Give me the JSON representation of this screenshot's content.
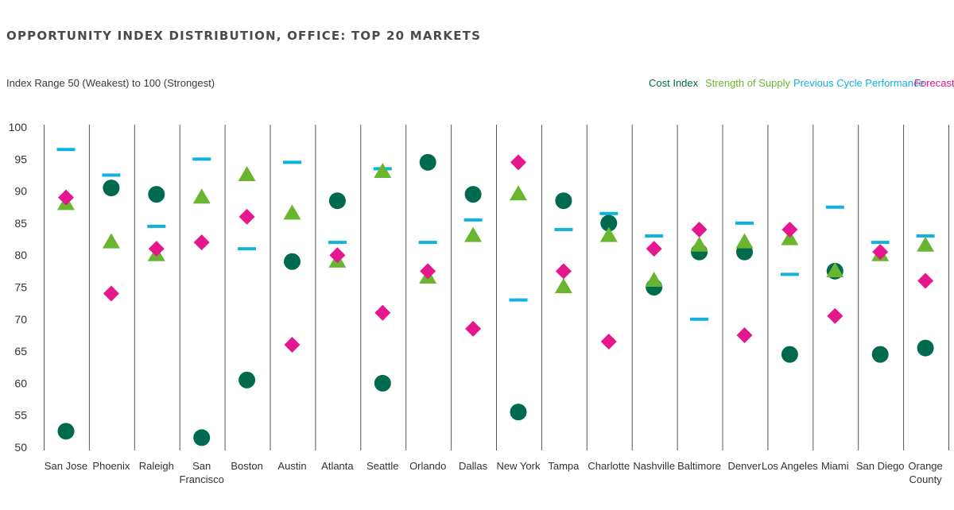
{
  "chart_data": {
    "type": "scatter",
    "title": "OPPORTUNITY INDEX DISTRIBUTION, OFFICE: TOP 20 MARKETS",
    "subtitle": "Index Range 50 (Weakest) to 100 (Strongest)",
    "ylim": [
      50,
      100
    ],
    "yticks": [
      50,
      55,
      60,
      65,
      70,
      75,
      80,
      85,
      90,
      95,
      100
    ],
    "grid": false,
    "legend_position": "top-right",
    "categories": [
      [
        "San Jose"
      ],
      [
        "Phoenix"
      ],
      [
        "Raleigh"
      ],
      [
        "San",
        "Francisco"
      ],
      [
        "Boston"
      ],
      [
        "Austin"
      ],
      [
        "Atlanta"
      ],
      [
        "Seattle"
      ],
      [
        "Orlando"
      ],
      [
        "Dallas"
      ],
      [
        "New York"
      ],
      [
        "Tampa"
      ],
      [
        "Charlotte"
      ],
      [
        "Nashville"
      ],
      [
        "Baltimore"
      ],
      [
        "Denver"
      ],
      [
        "Los Angeles"
      ],
      [
        "Miami"
      ],
      [
        "San Diego"
      ],
      [
        "Orange",
        "County"
      ]
    ],
    "series": [
      {
        "name": "Cost Index",
        "marker": "circle",
        "color": "#006a4e",
        "values": [
          52.5,
          90.5,
          89.5,
          51.5,
          60.5,
          79,
          88.5,
          60,
          94.5,
          89.5,
          55.5,
          88.5,
          85,
          75,
          80.5,
          80.5,
          64.5,
          77.5,
          64.5,
          65.5
        ]
      },
      {
        "name": "Strength of Supply",
        "marker": "triangle",
        "color": "#6ab52f",
        "values": [
          88,
          82,
          80,
          89,
          92.5,
          86.5,
          79,
          93,
          76.5,
          83,
          89.5,
          75,
          83,
          76,
          81.5,
          82,
          82.5,
          77.5,
          80,
          81.5
        ]
      },
      {
        "name": "Previous Cycle Performance",
        "marker": "dash",
        "color": "#10b3dd",
        "values": [
          96.5,
          92.5,
          84.5,
          95,
          81,
          94.5,
          82,
          93.5,
          82,
          85.5,
          73,
          84,
          86.5,
          83,
          70,
          85,
          77,
          87.5,
          82,
          83
        ]
      },
      {
        "name": "Forecast",
        "marker": "diamond",
        "color": "#e6168c",
        "values": [
          89,
          74,
          81,
          82,
          86,
          66,
          80,
          71,
          77.5,
          68.5,
          94.5,
          77.5,
          66.5,
          81,
          84,
          67.5,
          84,
          70.5,
          80.5,
          76
        ]
      }
    ]
  }
}
